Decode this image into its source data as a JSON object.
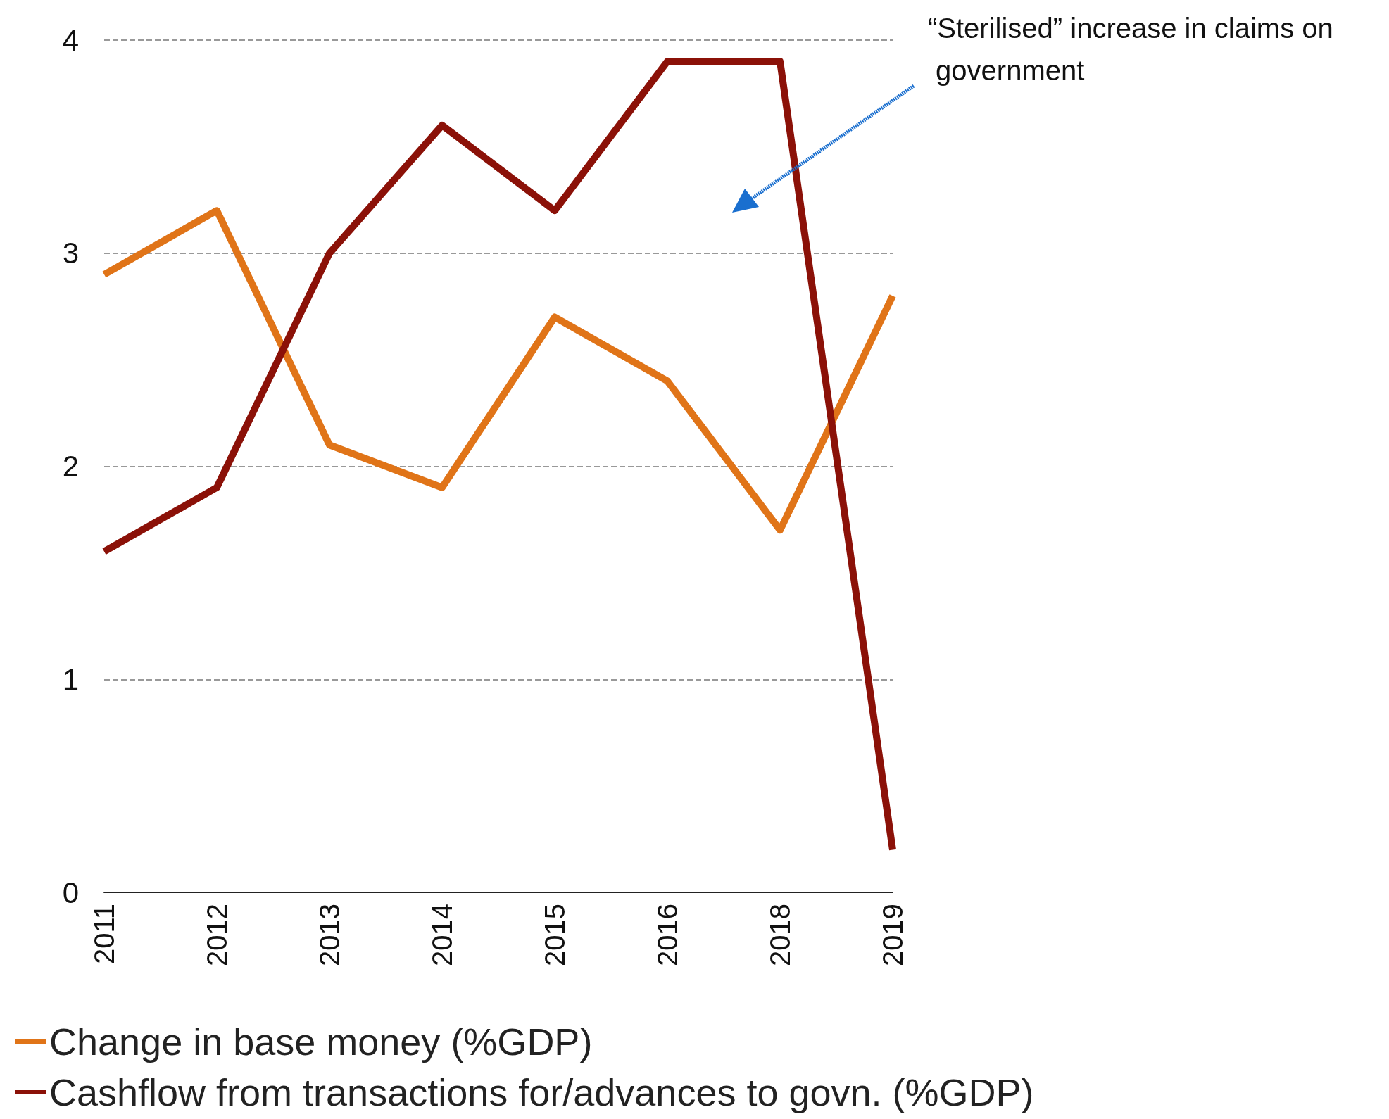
{
  "chart_data": {
    "type": "line",
    "categories": [
      "2011",
      "2012",
      "2013",
      "2014",
      "2015",
      "2016",
      "2018",
      "2019"
    ],
    "series": [
      {
        "name": "Change in base money (%GDP)",
        "color": "#e07418",
        "values": [
          2.9,
          3.2,
          2.1,
          1.9,
          2.7,
          2.4,
          1.7,
          2.8
        ]
      },
      {
        "name": "Cashflow from transactions for/advances to govn. (%GDP)",
        "color": "#8b1108",
        "values": [
          1.6,
          1.9,
          3.0,
          3.6,
          3.2,
          3.9,
          3.9,
          0.2
        ]
      }
    ],
    "ylim": [
      0,
      4
    ],
    "yticks": [
      0,
      1,
      2,
      3,
      4
    ],
    "grid": "y",
    "legend": "bottom left",
    "marker": "none",
    "annotations": [
      "“Sterilised” increase in claims on government"
    ]
  }
}
